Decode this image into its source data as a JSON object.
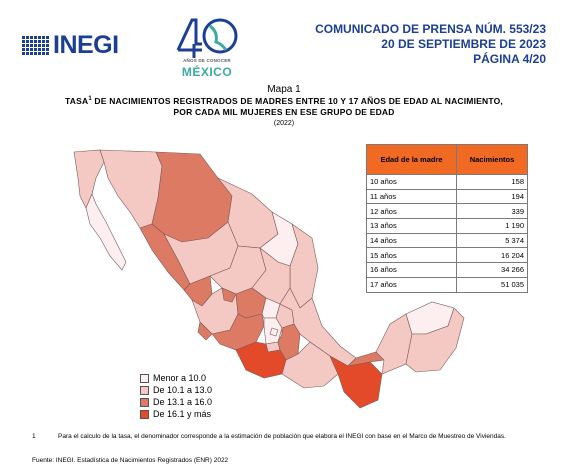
{
  "header": {
    "logo_text": "INEGI",
    "anniversary_number": "40",
    "anniversary_tagline": "AÑOS DE CONOCER",
    "anniversary_country": "MÉXICO",
    "press_line1": "COMUNICADO DE PRENSA NÚM. 553/23",
    "press_line2": "20 DE SEPTIEMBRE DE 2023",
    "press_line3": "PÁGINA 4/20"
  },
  "map": {
    "caption": "Mapa 1",
    "title_prefix": "Tasa",
    "title_sup": "1",
    "title_rest": " de nacimientos registrados de madres entre 10 y 17 años de edad al nacimiento,",
    "title_line2": "por cada mil mujeres en ese grupo de edad",
    "year": "(2022)"
  },
  "table": {
    "headers": [
      "Edad de la madre",
      "Nacimientos"
    ],
    "rows": [
      [
        "10 años",
        "158"
      ],
      [
        "11 años",
        "194"
      ],
      [
        "12 años",
        "339"
      ],
      [
        "13 años",
        "1 190"
      ],
      [
        "14 años",
        "5 374"
      ],
      [
        "15 años",
        "16 204"
      ],
      [
        "16 años",
        "34 266"
      ],
      [
        "17 años",
        "51 035"
      ]
    ]
  },
  "legend": [
    {
      "label": "Menor a 10.0",
      "color": "#fdeff0"
    },
    {
      "label": "De 10.1 a 13.0",
      "color": "#f5c9c3"
    },
    {
      "label": "De 13.1 a 16.0",
      "color": "#dd7a63"
    },
    {
      "label": "De 16.1 y más",
      "color": "#e34a2a"
    }
  ],
  "footnote": {
    "number": "1",
    "text": "Para el calculo de la tasa, el denominador corresponde a la estimación de población que elabora el INEGI con base en el Marco de Muestreo de Viviendas."
  },
  "source": "Fuente: INEGI. Estadística de Nacimientos Registrados (ENR) 2022"
}
